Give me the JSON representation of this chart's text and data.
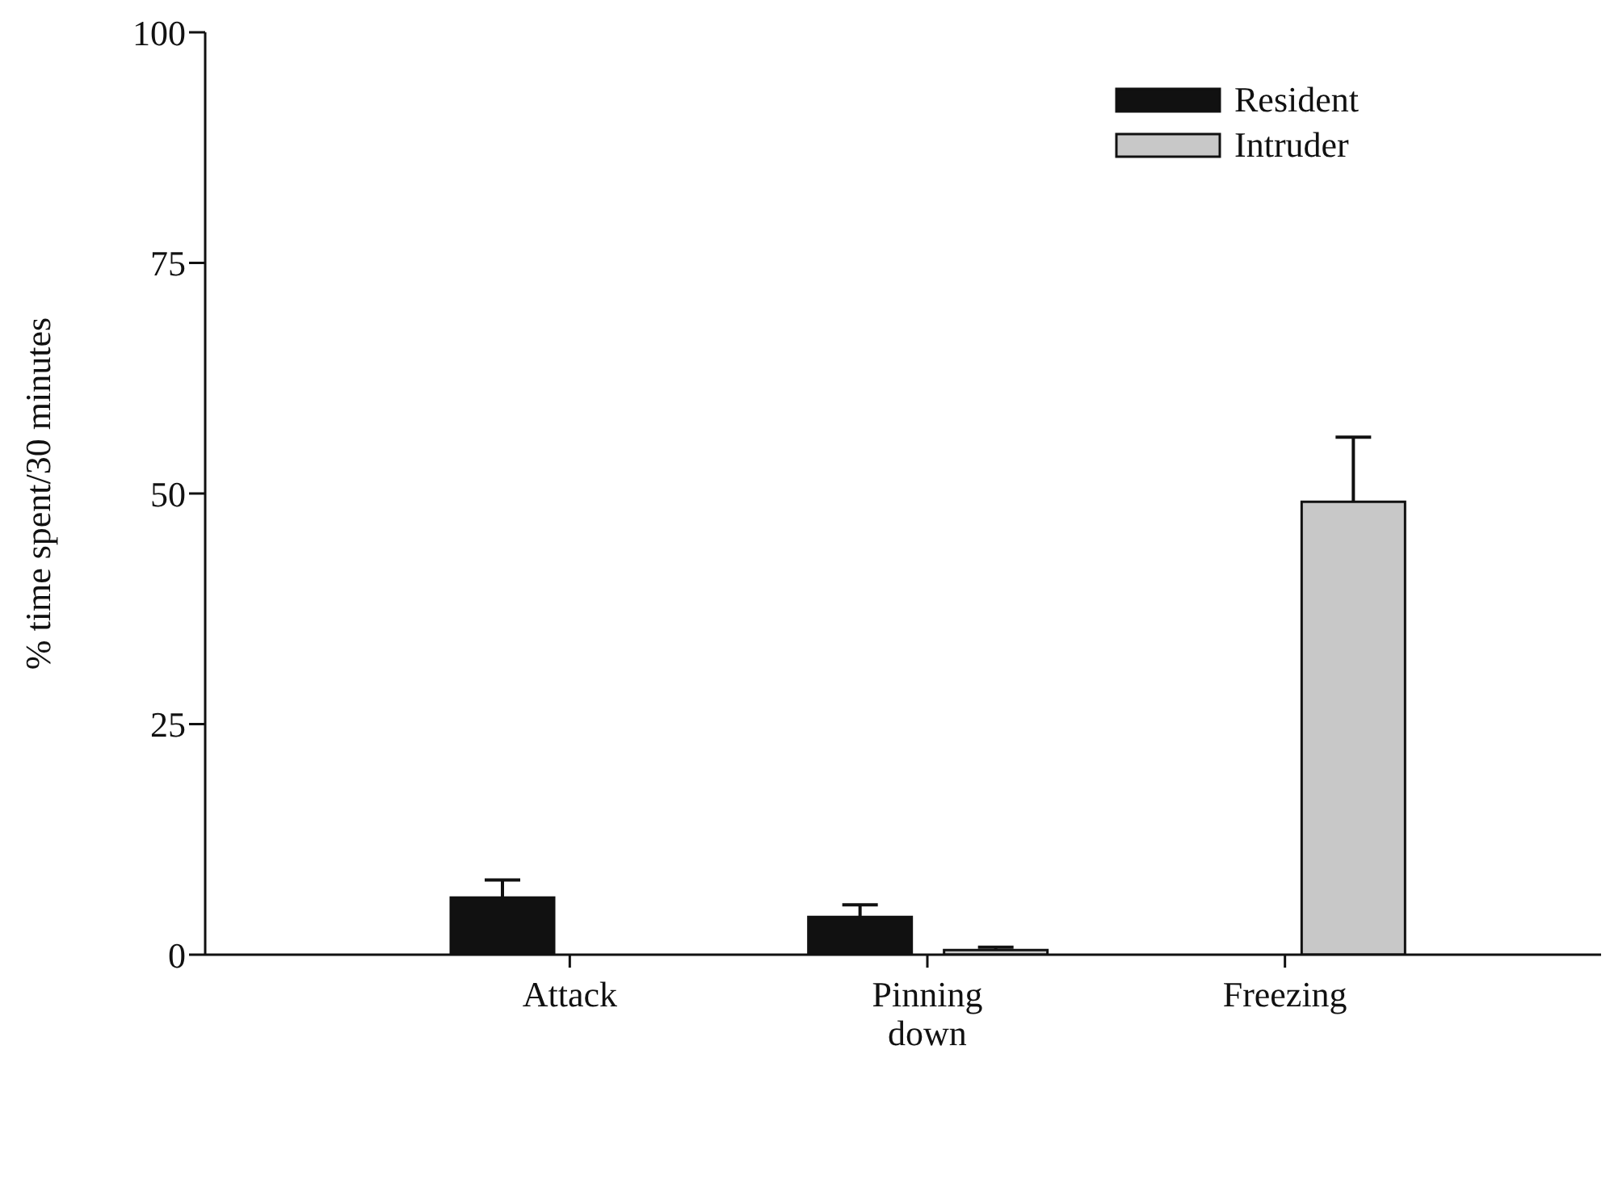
{
  "chart_data": {
    "type": "bar",
    "ylabel": "% time spent/30 minutes",
    "categories": [
      "Attack",
      "Pinning down",
      "Freezing"
    ],
    "series": [
      {
        "name": "Resident",
        "color": "#111111",
        "values": [
          6.2,
          4.1,
          0
        ],
        "errors": [
          [
            6.2,
            8.1
          ],
          [
            4.1,
            5.4
          ],
          null
        ]
      },
      {
        "name": "Intruder",
        "color": "#c8c8c8",
        "values": [
          0,
          0.5,
          49.1
        ],
        "errors": [
          null,
          [
            0.5,
            0.8
          ],
          [
            49.1,
            56.1
          ]
        ]
      }
    ],
    "ylim": [
      0,
      100
    ],
    "yticks": [
      0,
      25,
      50,
      75,
      100
    ],
    "grid": false,
    "legend": "top right"
  }
}
